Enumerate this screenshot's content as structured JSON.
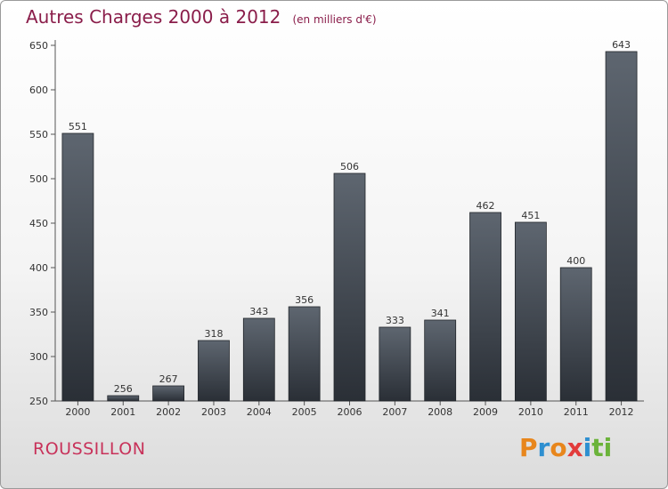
{
  "header": {
    "title": "Autres Charges 2000 à 2012",
    "unit": "(en milliers d'€)"
  },
  "footer": {
    "commune": "ROUSSILLON",
    "logo_letters": [
      "P",
      "r",
      "o",
      "x",
      "i",
      "t",
      "i"
    ],
    "logo_colors": [
      "#e8861c",
      "#2e8fd0",
      "#e8861c",
      "#e23b3b",
      "#2e8fd0",
      "#6bb33a",
      "#6bb33a"
    ]
  },
  "chart_data": {
    "type": "bar",
    "title": "Autres Charges 2000 à 2012",
    "subtitle": "(en milliers d'€)",
    "categories": [
      "2000",
      "2001",
      "2002",
      "2003",
      "2004",
      "2005",
      "2006",
      "2007",
      "2008",
      "2009",
      "2010",
      "2011",
      "2012"
    ],
    "values": [
      551,
      256,
      267,
      318,
      343,
      356,
      506,
      333,
      341,
      462,
      451,
      400,
      643
    ],
    "ylim": [
      250,
      650
    ],
    "yticks": [
      250,
      300,
      350,
      400,
      450,
      500,
      550,
      600,
      650
    ],
    "grid": false,
    "bar_color_top": "#5e6670",
    "bar_color_bottom": "#2a2f36",
    "axis_color": "#555555"
  }
}
